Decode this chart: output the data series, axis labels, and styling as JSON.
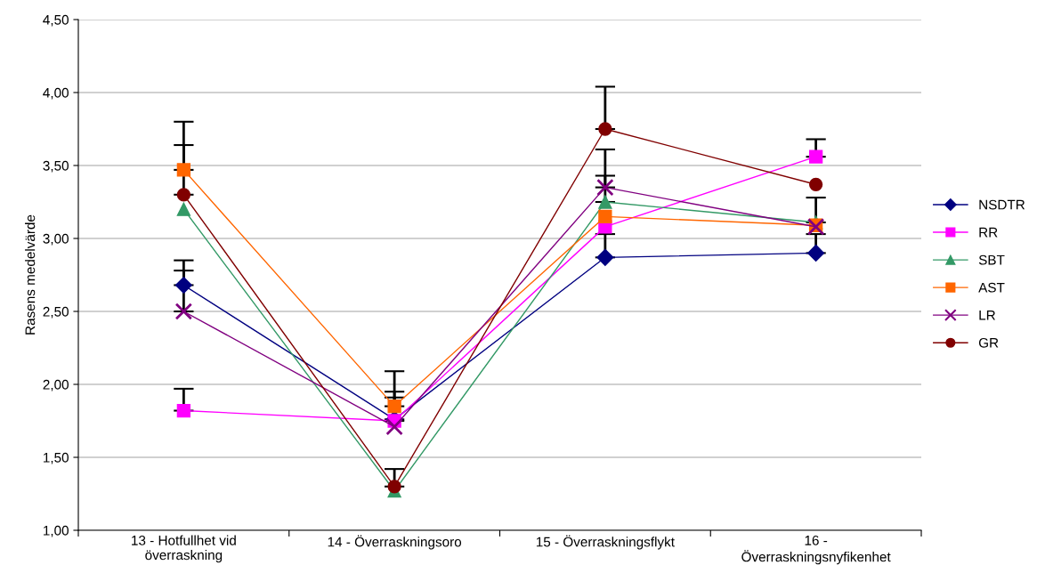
{
  "chart_data": {
    "type": "line",
    "ylabel": "Rasens medelvärde",
    "categories": [
      "13 - Hotfullhet vid\növerraskning",
      "14 - Överraskningsoro",
      "15 - Överraskningsflykt",
      "16 -\nÖverraskningsnyfikenhet"
    ],
    "series": [
      {
        "name": "NSDTR",
        "color": "#000080",
        "marker": "diamond",
        "values": [
          2.68,
          1.76,
          2.87,
          2.9
        ],
        "errors": [
          [
            2.68,
            2.85
          ],
          [
            1.76,
            1.91
          ],
          [
            2.87,
            3.03
          ],
          [
            2.9,
            3.03
          ]
        ]
      },
      {
        "name": "RR",
        "color": "#ff00ff",
        "marker": "square",
        "values": [
          1.82,
          1.75,
          3.08,
          3.56
        ],
        "errors": [
          [
            1.82,
            1.97
          ],
          [
            1.75,
            1.95
          ],
          null,
          [
            3.56,
            3.68
          ]
        ]
      },
      {
        "name": "SBT",
        "color": "#339966",
        "marker": "triangle",
        "values": [
          3.2,
          1.27,
          3.25,
          3.11
        ],
        "errors": [
          null,
          null,
          [
            3.25,
            3.43
          ],
          [
            3.11,
            3.28
          ]
        ]
      },
      {
        "name": "AST",
        "color": "#ff6600",
        "marker": "square",
        "values": [
          3.47,
          1.85,
          3.15,
          3.09
        ],
        "errors": [
          [
            3.47,
            3.8
          ],
          [
            1.85,
            2.09
          ],
          null,
          null
        ]
      },
      {
        "name": "LR",
        "color": "#800080",
        "marker": "cross",
        "values": [
          2.5,
          1.71,
          3.35,
          3.08
        ],
        "errors": [
          [
            2.5,
            2.78
          ],
          null,
          [
            3.35,
            3.61
          ],
          null
        ]
      },
      {
        "name": "GR",
        "color": "#800000",
        "marker": "circle",
        "values": [
          3.3,
          1.3,
          3.75,
          3.37
        ],
        "errors": [
          [
            3.3,
            3.64
          ],
          [
            1.3,
            1.42
          ],
          [
            3.75,
            4.04
          ],
          null
        ]
      }
    ],
    "ylim": [
      1.0,
      4.5
    ],
    "yticks": [
      {
        "value": 1.0,
        "label": "1,00"
      },
      {
        "value": 1.5,
        "label": "1,50"
      },
      {
        "value": 2.0,
        "label": "2,00"
      },
      {
        "value": 2.5,
        "label": "2,50"
      },
      {
        "value": 3.0,
        "label": "3,00"
      },
      {
        "value": 3.5,
        "label": "3,50"
      },
      {
        "value": 4.0,
        "label": "4,00"
      },
      {
        "value": 4.5,
        "label": "4,50"
      }
    ],
    "grid": "y",
    "legend": "right"
  }
}
